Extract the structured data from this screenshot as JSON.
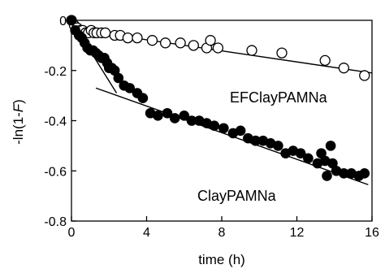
{
  "chart_data": {
    "type": "scatter",
    "xlabel": "time (h)",
    "ylabel": "-ln(1-F)",
    "ylabel_parts": {
      "prefix": "-ln(1-",
      "variable": "F",
      "suffix": ")"
    },
    "xlim": [
      0,
      16
    ],
    "ylim": [
      -0.8,
      0
    ],
    "x_ticks": [
      0,
      4,
      8,
      12,
      16
    ],
    "y_ticks": [
      0,
      -0.2,
      -0.4,
      -0.6,
      -0.8
    ],
    "x_tick_labels": [
      "0",
      "4",
      "8",
      "12",
      "16"
    ],
    "y_tick_labels": [
      "0",
      "-0.2",
      "-0.4",
      "-0.6",
      "-0.8"
    ],
    "grid": false,
    "series": [
      {
        "name": "EFClayPAMNa",
        "marker": "open-circle",
        "color": "#000000",
        "points": [
          [
            0.0,
            0.0
          ],
          [
            0.15,
            -0.02
          ],
          [
            0.3,
            -0.03
          ],
          [
            0.45,
            -0.04
          ],
          [
            0.6,
            -0.04
          ],
          [
            0.75,
            -0.05
          ],
          [
            0.9,
            -0.05
          ],
          [
            1.05,
            -0.04
          ],
          [
            1.2,
            -0.05
          ],
          [
            1.35,
            -0.05
          ],
          [
            1.6,
            -0.05
          ],
          [
            1.8,
            -0.05
          ],
          [
            2.3,
            -0.06
          ],
          [
            2.6,
            -0.06
          ],
          [
            3.0,
            -0.07
          ],
          [
            3.5,
            -0.07
          ],
          [
            4.3,
            -0.08
          ],
          [
            5.0,
            -0.09
          ],
          [
            5.8,
            -0.09
          ],
          [
            6.5,
            -0.1
          ],
          [
            7.2,
            -0.11
          ],
          [
            7.4,
            -0.08
          ],
          [
            7.8,
            -0.11
          ],
          [
            9.6,
            -0.12
          ],
          [
            11.2,
            -0.13
          ],
          [
            13.5,
            -0.16
          ],
          [
            14.5,
            -0.19
          ],
          [
            15.6,
            -0.22
          ]
        ],
        "fit_line": [
          [
            1.5,
            -0.05
          ],
          [
            16,
            -0.21
          ]
        ]
      },
      {
        "name": "ClayPAMNa",
        "marker": "filled-circle",
        "color": "#000000",
        "points": [
          [
            0.0,
            0.0
          ],
          [
            0.2,
            -0.04
          ],
          [
            0.4,
            -0.06
          ],
          [
            0.55,
            -0.07
          ],
          [
            0.7,
            -0.09
          ],
          [
            0.85,
            -0.11
          ],
          [
            1.0,
            -0.12
          ],
          [
            1.15,
            -0.12
          ],
          [
            1.3,
            -0.13
          ],
          [
            1.45,
            -0.14
          ],
          [
            1.6,
            -0.15
          ],
          [
            1.75,
            -0.15
          ],
          [
            1.9,
            -0.17
          ],
          [
            2.0,
            -0.19
          ],
          [
            2.15,
            -0.19
          ],
          [
            2.3,
            -0.2
          ],
          [
            2.5,
            -0.23
          ],
          [
            2.8,
            -0.26
          ],
          [
            3.1,
            -0.27
          ],
          [
            3.5,
            -0.29
          ],
          [
            3.8,
            -0.31
          ],
          [
            4.2,
            -0.37
          ],
          [
            4.6,
            -0.38
          ],
          [
            5.1,
            -0.37
          ],
          [
            5.5,
            -0.39
          ],
          [
            6.0,
            -0.38
          ],
          [
            6.4,
            -0.4
          ],
          [
            6.8,
            -0.4
          ],
          [
            7.2,
            -0.41
          ],
          [
            7.6,
            -0.42
          ],
          [
            8.1,
            -0.43
          ],
          [
            8.6,
            -0.45
          ],
          [
            9.0,
            -0.44
          ],
          [
            9.4,
            -0.47
          ],
          [
            9.8,
            -0.48
          ],
          [
            10.2,
            -0.48
          ],
          [
            10.6,
            -0.49
          ],
          [
            11.0,
            -0.5
          ],
          [
            11.4,
            -0.53
          ],
          [
            11.8,
            -0.52
          ],
          [
            12.2,
            -0.53
          ],
          [
            12.6,
            -0.55
          ],
          [
            13.1,
            -0.57
          ],
          [
            13.5,
            -0.56
          ],
          [
            13.9,
            -0.57
          ],
          [
            14.1,
            -0.6
          ],
          [
            14.5,
            -0.61
          ],
          [
            14.9,
            -0.61
          ],
          [
            15.3,
            -0.62
          ],
          [
            15.6,
            -0.61
          ],
          [
            13.6,
            -0.62
          ],
          [
            13.3,
            -0.53
          ],
          [
            13.8,
            -0.5
          ],
          [
            9.8,
            -0.48
          ]
        ],
        "fit_line": [
          [
            1.3,
            -0.27
          ],
          [
            15.8,
            -0.655
          ]
        ],
        "initial_line": [
          [
            0.4,
            -0.05
          ],
          [
            2.4,
            -0.29
          ]
        ]
      }
    ]
  }
}
